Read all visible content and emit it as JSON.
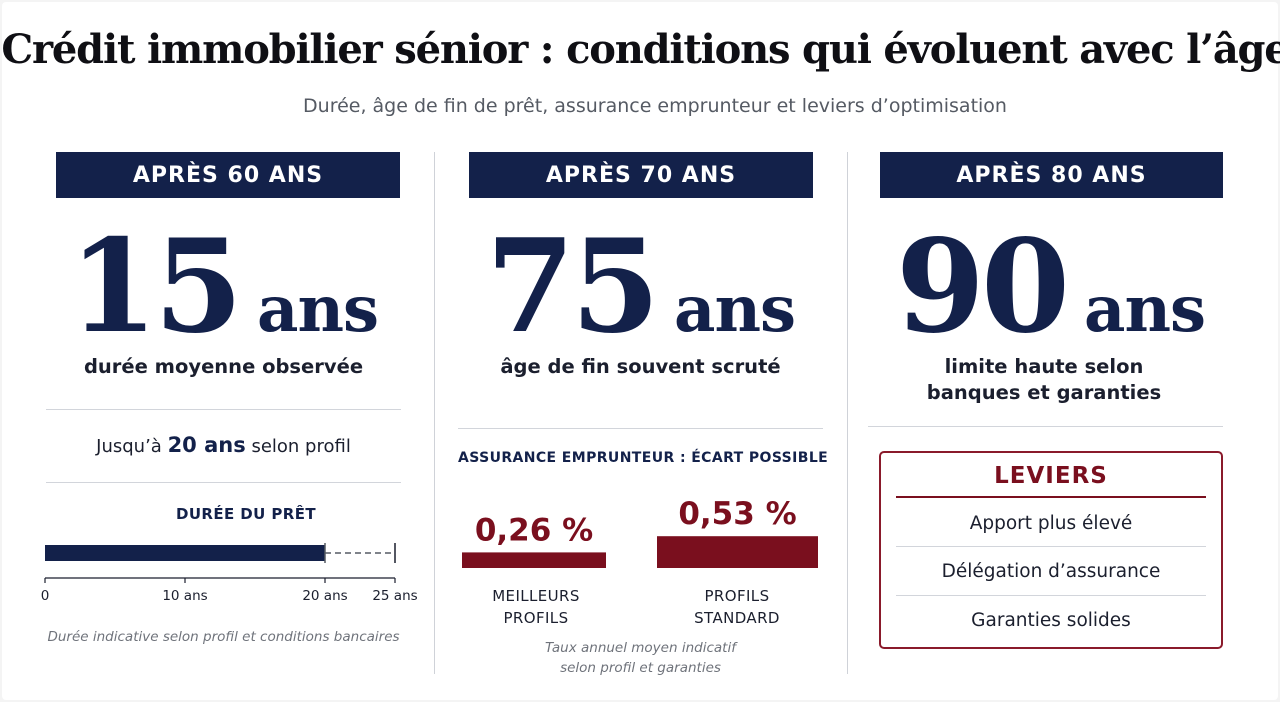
{
  "header": {
    "title": "Crédit immobilier sénior : conditions qui évoluent avec l’âge",
    "subtitle": "Durée, âge de fin de prêt, assurance emprunteur et leviers d’optimisation"
  },
  "columns": [
    {
      "band": "APRÈS 60 ANS",
      "number": "15",
      "unit": "ans",
      "caption": "durée moyenne observée",
      "extra": {
        "prefix": "Jusqu’à ",
        "strong": "20 ans",
        "suffix": " selon profil"
      },
      "note": "Durée indicative selon profil et conditions bancaires"
    },
    {
      "band": "APRÈS 70 ANS",
      "number": "75",
      "unit": "ans",
      "caption": "âge de fin souvent scruté",
      "note_line1": "Taux annuel moyen indicatif",
      "note_line2": "selon profil et garanties"
    },
    {
      "band": "APRÈS 80 ANS",
      "number": "90",
      "unit": "ans",
      "caption_line1": "limite haute selon",
      "caption_line2": "banques et garanties",
      "leviers": {
        "title": "LEVIERS",
        "items": [
          "Apport plus élevé",
          "Délégation d’assurance",
          "Garanties solides"
        ]
      }
    }
  ],
  "chart_data": [
    {
      "type": "bar",
      "title": "DURÉE DU PRÊT",
      "orientation": "horizontal",
      "value": 20,
      "max_extent": 25,
      "xlim": [
        0,
        25
      ],
      "ticks": [
        0,
        10,
        20,
        25
      ],
      "tick_labels": [
        "0",
        "10 ans",
        "20 ans",
        "25 ans"
      ],
      "colors": {
        "bar": "#13214a",
        "dashed": "#555a63"
      }
    },
    {
      "type": "bar",
      "title": "ASSURANCE EMPRUNTEUR : ÉCART POSSIBLE",
      "categories_line1": [
        "MEILLEURS",
        "PROFILS"
      ],
      "categories_line2": [
        "PROFILS",
        "STANDARD"
      ],
      "values": [
        0.26,
        0.53
      ],
      "value_labels": [
        "0,26 %",
        "0,53 %"
      ],
      "colors": {
        "bar": "#7a0f1e"
      }
    }
  ]
}
